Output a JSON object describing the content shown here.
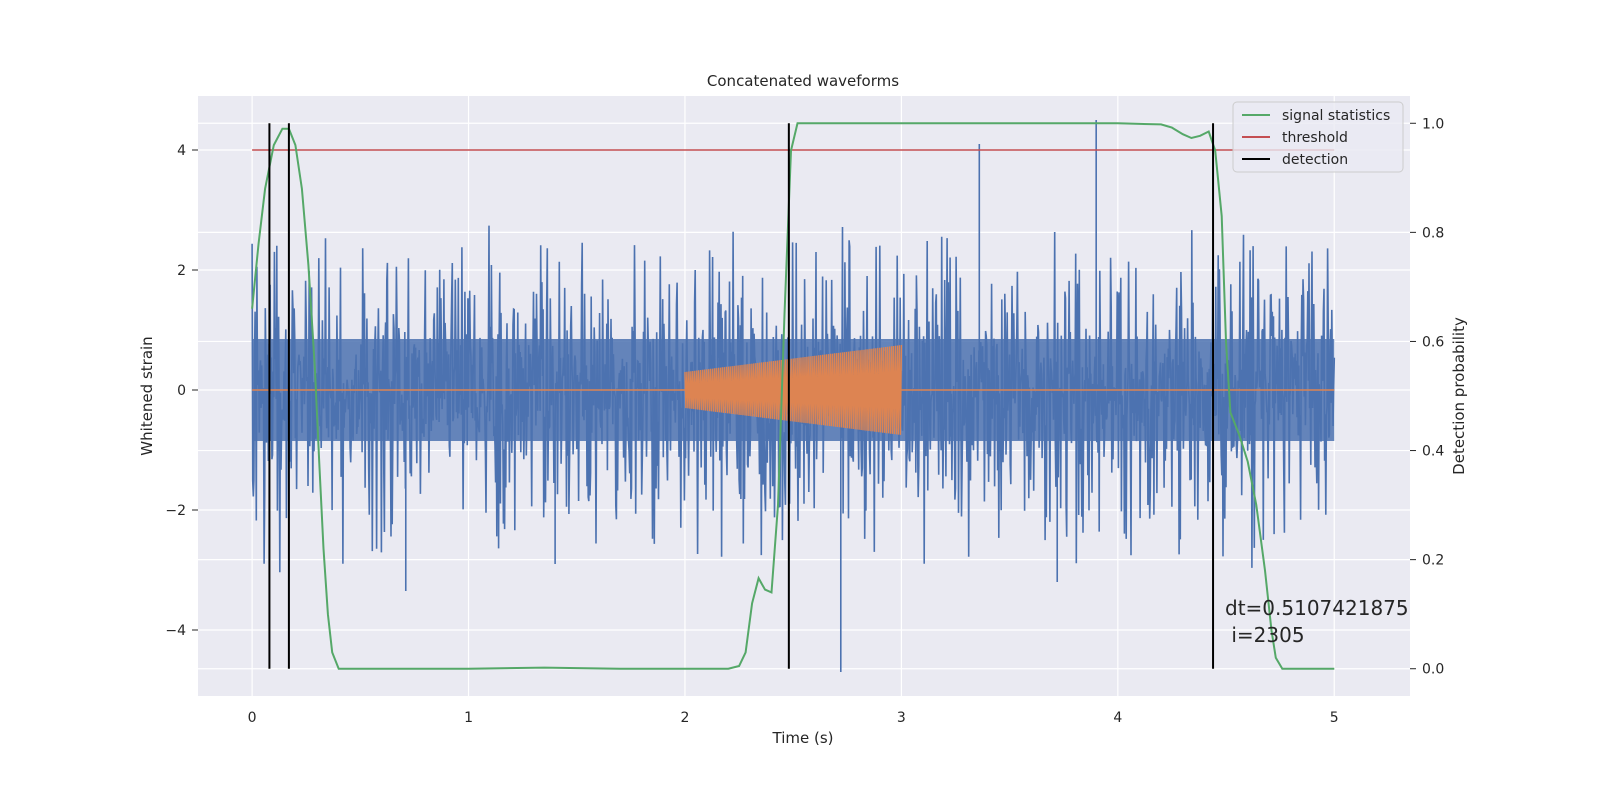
{
  "chart_data": {
    "type": "line",
    "title": "Concatenated waveforms",
    "xlabel": "Time (s)",
    "ylabel": "Whitened strain",
    "y2label": "Detection probability",
    "xlim": [
      -0.25,
      5.35
    ],
    "ylim": [
      -5.1,
      4.9
    ],
    "y2lim": [
      -0.05,
      1.05
    ],
    "x_ticks": [
      0,
      1,
      2,
      3,
      4,
      5
    ],
    "x_tick_labels": [
      "0",
      "1",
      "2",
      "3",
      "4",
      "5"
    ],
    "y_ticks": [
      -4,
      -2,
      0,
      2,
      4
    ],
    "y_tick_labels": [
      "−4",
      "−2",
      "0",
      "2",
      "4"
    ],
    "y2_ticks": [
      0.0,
      0.2,
      0.4,
      0.6,
      0.8,
      1.0
    ],
    "y2_tick_labels": [
      "0.0",
      "0.2",
      "0.4",
      "0.6",
      "0.8",
      "1.0"
    ],
    "grid": true,
    "legend_position": "top-right",
    "legend": [
      {
        "label": "signal statistics",
        "color": "#55a868"
      },
      {
        "label": "threshold",
        "color": "#c44e52"
      },
      {
        "label": "detection",
        "color": "#000000"
      }
    ],
    "series": [
      {
        "name": "signal statistics",
        "axis": "right",
        "color": "#55a868",
        "x": [
          0.0,
          0.03,
          0.06,
          0.1,
          0.14,
          0.17,
          0.2,
          0.23,
          0.26,
          0.29,
          0.31,
          0.33,
          0.35,
          0.37,
          0.4,
          0.5,
          1.0,
          1.35,
          1.7,
          2.0,
          2.2,
          2.25,
          2.28,
          2.31,
          2.34,
          2.37,
          2.4,
          2.43,
          2.46,
          2.49,
          2.52,
          2.6,
          3.0,
          4.0,
          4.2,
          4.25,
          4.3,
          4.34,
          4.38,
          4.42,
          4.45,
          4.48,
          4.5,
          4.52,
          4.56,
          4.6,
          4.64,
          4.68,
          4.71,
          4.73,
          4.76,
          5.0
        ],
        "y": [
          0.66,
          0.78,
          0.88,
          0.96,
          0.99,
          0.99,
          0.96,
          0.88,
          0.74,
          0.55,
          0.38,
          0.22,
          0.1,
          0.03,
          0.0,
          0.0,
          0.0,
          0.002,
          0.0,
          0.0,
          0.0,
          0.005,
          0.03,
          0.12,
          0.166,
          0.145,
          0.14,
          0.3,
          0.65,
          0.95,
          1.0,
          1.0,
          1.0,
          1.0,
          0.998,
          0.992,
          0.98,
          0.973,
          0.977,
          0.985,
          0.95,
          0.83,
          0.6,
          0.47,
          0.43,
          0.38,
          0.3,
          0.18,
          0.07,
          0.02,
          0.0,
          0.0
        ]
      },
      {
        "name": "threshold",
        "axis": "left",
        "color": "#c44e52",
        "x": [
          0,
          5
        ],
        "y": [
          4,
          4
        ]
      },
      {
        "name": "whitened strain (noise)",
        "axis": "left",
        "color": "#4c72b0",
        "x_range": [
          0,
          5
        ],
        "envelope_typical": 2.2,
        "min": -4.7,
        "max": 4.5
      },
      {
        "name": "injected waveform",
        "axis": "left",
        "color": "#dd8452",
        "baseline": 0,
        "x_range": [
          2.0,
          3.0
        ],
        "amplitude_start": 0.3,
        "amplitude_end": 0.75
      }
    ],
    "detections_x": [
      0.08,
      0.17,
      2.48,
      4.44
    ],
    "annotation": {
      "text_line1": "dt=0.5107421875",
      "text_line2": " i=2305"
    }
  }
}
